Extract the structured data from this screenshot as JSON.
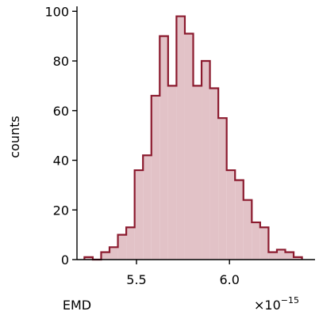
{
  "chart_data": {
    "type": "histogram",
    "xlabel": "EMD",
    "ylabel": "counts",
    "x_multiplier": "×10",
    "x_multiplier_exponent": "−15",
    "x_scale_factor": 1e-15,
    "xlim": [
      5.18e-15,
      6.46e-15
    ],
    "ylim": [
      0,
      102
    ],
    "x_ticks": [
      5.5e-15,
      6e-15
    ],
    "x_tick_labels": [
      "5.5",
      "6.0"
    ],
    "y_ticks": [
      0,
      20,
      40,
      60,
      80,
      100
    ],
    "y_tick_labels": [
      "0",
      "20",
      "40",
      "60",
      "80",
      "100"
    ],
    "bin_edges": [
      5.22e-15,
      5.265e-15,
      5.31e-15,
      5.355e-15,
      5.4e-15,
      5.445e-15,
      5.49e-15,
      5.535e-15,
      5.58e-15,
      5.625e-15,
      5.67e-15,
      5.715e-15,
      5.76e-15,
      5.805e-15,
      5.85e-15,
      5.895e-15,
      5.94e-15,
      5.985e-15,
      6.03e-15,
      6.075e-15,
      6.12e-15,
      6.165e-15,
      6.21e-15,
      6.255e-15,
      6.3e-15,
      6.345e-15,
      6.39e-15
    ],
    "counts": [
      1,
      0,
      3,
      5,
      10,
      13,
      36,
      42,
      66,
      90,
      70,
      98,
      91,
      70,
      80,
      69,
      57,
      36,
      32,
      24,
      15,
      13,
      3,
      4,
      3,
      1
    ],
    "colors": {
      "edge": "#8b1a2e",
      "fill": "#e2c2c7"
    }
  }
}
